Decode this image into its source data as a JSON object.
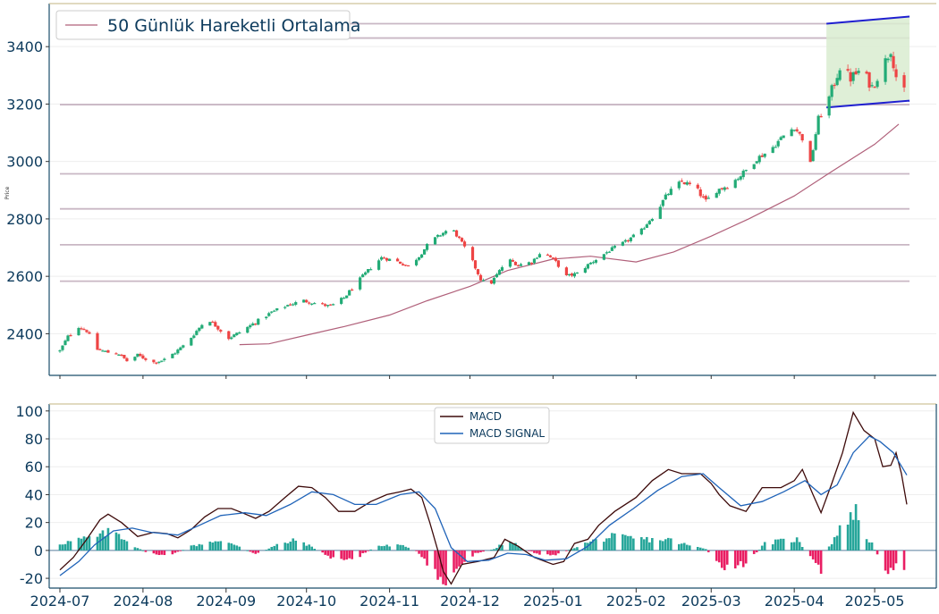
{
  "chart_data": [
    {
      "type": "candlestick",
      "legend": {
        "label": "50 Günlük Hareketli Ortalama",
        "placement": "top-left"
      },
      "ylabel": "Price",
      "ylim": [
        2255,
        3550
      ],
      "yticks": [
        2400,
        2600,
        2800,
        3000,
        3200,
        3400
      ],
      "xlim": [
        "2024-06-27",
        "2025-05-24"
      ],
      "grid": "horizontal",
      "horizontal_levels": [
        2583,
        2710,
        2835,
        2957,
        3198,
        3430,
        3480
      ],
      "channel": {
        "upper": [
          [
            "2025-04-13",
            3480
          ],
          [
            "2025-05-14",
            3505
          ]
        ],
        "lower": [
          [
            "2025-04-13",
            3188
          ],
          [
            "2025-05-14",
            3212
          ]
        ],
        "fill_color": "#d9ecd0",
        "line_color": "#1f1fd0"
      },
      "up_color": "#22ab76",
      "down_color": "#ee4444",
      "ma_color": "#b0607a",
      "ma_50": [
        [
          "2024-09-06",
          2362
        ],
        [
          "2024-09-17",
          2365
        ],
        [
          "2024-10-01",
          2395
        ],
        [
          "2024-10-15",
          2425
        ],
        [
          "2024-11-01",
          2465
        ],
        [
          "2024-11-15",
          2515
        ],
        [
          "2024-12-01",
          2565
        ],
        [
          "2024-12-15",
          2620
        ],
        [
          "2025-01-01",
          2660
        ],
        [
          "2025-01-15",
          2670
        ],
        [
          "2025-02-01",
          2650
        ],
        [
          "2025-02-15",
          2685
        ],
        [
          "2025-03-01",
          2740
        ],
        [
          "2025-03-15",
          2800
        ],
        [
          "2025-04-01",
          2880
        ],
        [
          "2025-04-15",
          2965
        ],
        [
          "2025-05-01",
          3060
        ],
        [
          "2025-05-10",
          3130
        ]
      ],
      "close_path": [
        [
          "2024-07-01",
          2340
        ],
        [
          "2024-07-04",
          2390
        ],
        [
          "2024-07-08",
          2425
        ],
        [
          "2024-07-11",
          2410
        ],
        [
          "2024-07-15",
          2345
        ],
        [
          "2024-07-19",
          2335
        ],
        [
          "2024-07-23",
          2330
        ],
        [
          "2024-07-26",
          2305
        ],
        [
          "2024-07-30",
          2325
        ],
        [
          "2024-08-05",
          2300
        ],
        [
          "2024-08-09",
          2310
        ],
        [
          "2024-08-13",
          2335
        ],
        [
          "2024-08-17",
          2365
        ],
        [
          "2024-08-21",
          2410
        ],
        [
          "2024-08-25",
          2455
        ],
        [
          "2024-08-29",
          2420
        ],
        [
          "2024-09-02",
          2385
        ],
        [
          "2024-09-06",
          2405
        ],
        [
          "2024-09-12",
          2440
        ],
        [
          "2024-09-18",
          2475
        ],
        [
          "2024-09-24",
          2500
        ],
        [
          "2024-09-30",
          2515
        ],
        [
          "2024-10-05",
          2505
        ],
        [
          "2024-10-10",
          2495
        ],
        [
          "2024-10-15",
          2525
        ],
        [
          "2024-10-20",
          2580
        ],
        [
          "2024-10-25",
          2630
        ],
        [
          "2024-10-29",
          2665
        ],
        [
          "2024-11-03",
          2655
        ],
        [
          "2024-11-08",
          2635
        ],
        [
          "2024-11-12",
          2670
        ],
        [
          "2024-11-16",
          2720
        ],
        [
          "2024-11-20",
          2745
        ],
        [
          "2024-11-24",
          2770
        ],
        [
          "2024-11-27",
          2730
        ],
        [
          "2024-12-01",
          2670
        ],
        [
          "2024-12-05",
          2590
        ],
        [
          "2024-12-08",
          2565
        ],
        [
          "2024-12-11",
          2605
        ],
        [
          "2024-12-15",
          2660
        ],
        [
          "2024-12-19",
          2640
        ],
        [
          "2024-12-24",
          2650
        ],
        [
          "2024-12-28",
          2690
        ],
        [
          "2025-01-02",
          2650
        ],
        [
          "2025-01-06",
          2600
        ],
        [
          "2025-01-10",
          2610
        ],
        [
          "2025-01-14",
          2640
        ],
        [
          "2025-01-18",
          2665
        ],
        [
          "2025-01-22",
          2690
        ],
        [
          "2025-01-28",
          2720
        ],
        [
          "2025-02-03",
          2760
        ],
        [
          "2025-02-08",
          2820
        ],
        [
          "2025-02-13",
          2890
        ],
        [
          "2025-02-18",
          2930
        ],
        [
          "2025-02-23",
          2910
        ],
        [
          "2025-02-27",
          2860
        ],
        [
          "2025-03-03",
          2900
        ],
        [
          "2025-03-08",
          2920
        ],
        [
          "2025-03-13",
          2960
        ],
        [
          "2025-03-18",
          3010
        ],
        [
          "2025-03-23",
          3040
        ],
        [
          "2025-03-28",
          3090
        ],
        [
          "2025-04-01",
          3120
        ],
        [
          "2025-04-04",
          3080
        ],
        [
          "2025-04-07",
          2990
        ],
        [
          "2025-04-10",
          3150
        ],
        [
          "2025-04-14",
          3220
        ],
        [
          "2025-04-18",
          3330
        ],
        [
          "2025-04-22",
          3290
        ],
        [
          "2025-04-26",
          3320
        ],
        [
          "2025-04-30",
          3260
        ],
        [
          "2025-05-04",
          3330
        ],
        [
          "2025-05-07",
          3390
        ],
        [
          "2025-05-10",
          3250
        ],
        [
          "2025-05-12",
          3240
        ]
      ]
    },
    {
      "type": "macd",
      "xlabels": [
        "2024-07",
        "2024-08",
        "2024-09",
        "2024-10",
        "2024-11",
        "2024-12",
        "2025-01",
        "2025-02",
        "2025-03",
        "2025-04",
        "2025-05"
      ],
      "xticks": [
        "2024-07-01",
        "2024-08-01",
        "2024-09-01",
        "2024-10-01",
        "2024-11-01",
        "2024-12-01",
        "2025-01-01",
        "2025-02-01",
        "2025-03-01",
        "2025-04-01",
        "2025-05-01"
      ],
      "ylim": [
        -27,
        105
      ],
      "yticks": [
        -20,
        0,
        20,
        40,
        60,
        80,
        100
      ],
      "grid": "horizontal",
      "legend_placement": "top-center",
      "series": [
        {
          "name": "MACD",
          "color": "#3d0a0a",
          "points": [
            [
              "2024-07-01",
              -14
            ],
            [
              "2024-07-06",
              -5
            ],
            [
              "2024-07-11",
              8
            ],
            [
              "2024-07-16",
              22
            ],
            [
              "2024-07-19",
              26
            ],
            [
              "2024-07-24",
              20
            ],
            [
              "2024-07-30",
              10
            ],
            [
              "2024-08-05",
              13
            ],
            [
              "2024-08-10",
              12
            ],
            [
              "2024-08-14",
              9
            ],
            [
              "2024-08-19",
              15
            ],
            [
              "2024-08-24",
              24
            ],
            [
              "2024-08-29",
              30
            ],
            [
              "2024-09-03",
              30
            ],
            [
              "2024-09-07",
              27
            ],
            [
              "2024-09-12",
              23
            ],
            [
              "2024-09-17",
              28
            ],
            [
              "2024-09-23",
              38
            ],
            [
              "2024-09-28",
              46
            ],
            [
              "2024-10-03",
              45
            ],
            [
              "2024-10-08",
              38
            ],
            [
              "2024-10-13",
              28
            ],
            [
              "2024-10-19",
              28
            ],
            [
              "2024-10-25",
              35
            ],
            [
              "2024-10-31",
              40
            ],
            [
              "2024-11-05",
              42
            ],
            [
              "2024-11-09",
              44
            ],
            [
              "2024-11-13",
              38
            ],
            [
              "2024-11-16",
              20
            ],
            [
              "2024-11-19",
              0
            ],
            [
              "2024-11-21",
              -15
            ],
            [
              "2024-11-24",
              -24
            ],
            [
              "2024-11-28",
              -10
            ],
            [
              "2024-12-04",
              -8
            ],
            [
              "2024-12-10",
              -5
            ],
            [
              "2024-12-14",
              8
            ],
            [
              "2024-12-19",
              3
            ],
            [
              "2024-12-25",
              -5
            ],
            [
              "2025-01-01",
              -10
            ],
            [
              "2025-01-05",
              -8
            ],
            [
              "2025-01-09",
              5
            ],
            [
              "2025-01-14",
              8
            ],
            [
              "2025-01-18",
              18
            ],
            [
              "2025-01-24",
              28
            ],
            [
              "2025-02-01",
              38
            ],
            [
              "2025-02-07",
              50
            ],
            [
              "2025-02-13",
              58
            ],
            [
              "2025-02-18",
              55
            ],
            [
              "2025-02-25",
              55
            ],
            [
              "2025-03-01",
              48
            ],
            [
              "2025-03-04",
              40
            ],
            [
              "2025-03-08",
              32
            ],
            [
              "2025-03-14",
              28
            ],
            [
              "2025-03-20",
              45
            ],
            [
              "2025-03-27",
              45
            ],
            [
              "2025-04-01",
              50
            ],
            [
              "2025-04-04",
              58
            ],
            [
              "2025-04-08",
              40
            ],
            [
              "2025-04-11",
              27
            ],
            [
              "2025-04-15",
              48
            ],
            [
              "2025-04-19",
              70
            ],
            [
              "2025-04-23",
              99
            ],
            [
              "2025-04-27",
              86
            ],
            [
              "2025-05-01",
              80
            ],
            [
              "2025-05-04",
              60
            ],
            [
              "2025-05-07",
              61
            ],
            [
              "2025-05-09",
              70
            ],
            [
              "2025-05-11",
              55
            ],
            [
              "2025-05-13",
              33
            ]
          ]
        },
        {
          "name": "MACD SIGNAL",
          "color": "#1f63b8",
          "points": [
            [
              "2024-07-01",
              -18
            ],
            [
              "2024-07-08",
              -8
            ],
            [
              "2024-07-14",
              4
            ],
            [
              "2024-07-21",
              14
            ],
            [
              "2024-07-28",
              16
            ],
            [
              "2024-08-04",
              13
            ],
            [
              "2024-08-14",
              11
            ],
            [
              "2024-08-22",
              18
            ],
            [
              "2024-08-30",
              25
            ],
            [
              "2024-09-08",
              27
            ],
            [
              "2024-09-16",
              25
            ],
            [
              "2024-09-25",
              33
            ],
            [
              "2024-10-03",
              42
            ],
            [
              "2024-10-11",
              40
            ],
            [
              "2024-10-19",
              33
            ],
            [
              "2024-10-27",
              33
            ],
            [
              "2024-11-05",
              40
            ],
            [
              "2024-11-12",
              42
            ],
            [
              "2024-11-18",
              30
            ],
            [
              "2024-11-24",
              2
            ],
            [
              "2024-11-30",
              -8
            ],
            [
              "2024-12-08",
              -7
            ],
            [
              "2024-12-15",
              -2
            ],
            [
              "2024-12-22",
              -3
            ],
            [
              "2024-12-29",
              -7
            ],
            [
              "2025-01-06",
              -6
            ],
            [
              "2025-01-14",
              3
            ],
            [
              "2025-01-22",
              18
            ],
            [
              "2025-01-31",
              30
            ],
            [
              "2025-02-09",
              43
            ],
            [
              "2025-02-18",
              53
            ],
            [
              "2025-02-26",
              55
            ],
            [
              "2025-03-04",
              45
            ],
            [
              "2025-03-12",
              32
            ],
            [
              "2025-03-20",
              35
            ],
            [
              "2025-03-28",
              42
            ],
            [
              "2025-04-05",
              50
            ],
            [
              "2025-04-11",
              40
            ],
            [
              "2025-04-17",
              47
            ],
            [
              "2025-04-23",
              70
            ],
            [
              "2025-04-29",
              82
            ],
            [
              "2025-05-03",
              78
            ],
            [
              "2025-05-08",
              70
            ],
            [
              "2025-05-13",
              54
            ]
          ]
        }
      ],
      "histogram": {
        "pos_color": "#26a69a",
        "neg_color": "#e91e63",
        "points": [
          [
            "2024-07-01",
            5
          ],
          [
            "2024-07-08",
            8
          ],
          [
            "2024-07-15",
            10
          ],
          [
            "2024-07-21",
            15
          ],
          [
            "2024-07-28",
            4
          ],
          [
            "2024-08-04",
            -3
          ],
          [
            "2024-08-12",
            -3
          ],
          [
            "2024-08-19",
            3
          ],
          [
            "2024-08-27",
            7
          ],
          [
            "2024-09-05",
            4
          ],
          [
            "2024-09-12",
            -3
          ],
          [
            "2024-09-20",
            4
          ],
          [
            "2024-09-28",
            8
          ],
          [
            "2024-10-06",
            -1
          ],
          [
            "2024-10-13",
            -8
          ],
          [
            "2024-10-20",
            -5
          ],
          [
            "2024-10-27",
            3
          ],
          [
            "2024-11-03",
            4
          ],
          [
            "2024-11-10",
            2
          ],
          [
            "2024-11-14",
            -8
          ],
          [
            "2024-11-18",
            -18
          ],
          [
            "2024-11-22",
            -24
          ],
          [
            "2024-11-27",
            -12
          ],
          [
            "2024-12-03",
            -2
          ],
          [
            "2024-12-10",
            1
          ],
          [
            "2024-12-15",
            8
          ],
          [
            "2024-12-20",
            2
          ],
          [
            "2024-12-27",
            -3
          ],
          [
            "2025-01-03",
            -3
          ],
          [
            "2025-01-10",
            3
          ],
          [
            "2025-01-16",
            7
          ],
          [
            "2025-01-23",
            10
          ],
          [
            "2025-01-30",
            9
          ],
          [
            "2025-02-06",
            8
          ],
          [
            "2025-02-13",
            8
          ],
          [
            "2025-02-20",
            4
          ],
          [
            "2025-02-27",
            1
          ],
          [
            "2025-03-04",
            -12
          ],
          [
            "2025-03-09",
            -14
          ],
          [
            "2025-03-15",
            -8
          ],
          [
            "2025-03-21",
            5
          ],
          [
            "2025-03-27",
            7
          ],
          [
            "2025-04-02",
            8
          ],
          [
            "2025-04-07",
            -5
          ],
          [
            "2025-04-11",
            -16
          ],
          [
            "2025-04-14",
            3
          ],
          [
            "2025-04-18",
            15
          ],
          [
            "2025-04-21",
            25
          ],
          [
            "2025-04-24",
            28
          ],
          [
            "2025-04-27",
            12
          ],
          [
            "2025-04-30",
            5
          ],
          [
            "2025-05-03",
            -8
          ],
          [
            "2025-05-06",
            -14
          ],
          [
            "2025-05-09",
            -10
          ],
          [
            "2025-05-12",
            -18
          ]
        ]
      }
    }
  ]
}
